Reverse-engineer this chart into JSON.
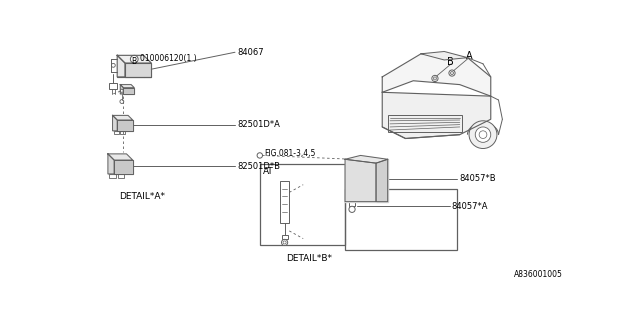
{
  "bg_color": "#ffffff",
  "line_color": "#606060",
  "text_color": "#000000",
  "fig_width": 6.4,
  "fig_height": 3.2,
  "dpi": 100,
  "part_number_bottom_right": "A836001005",
  "labels": {
    "detail_a": "DETAIL*A*",
    "detail_b": "DETAIL*B*",
    "fig_label": "FIG.081-3,4,5",
    "at_label": "AT",
    "part_84067": "84067",
    "part_82501A": "82501D*A",
    "part_82501B": "82501D*B",
    "part_84057A": "84057*A",
    "part_84057B": "84057*B",
    "label_A": "A",
    "label_B": "B"
  },
  "callout_b_text": "B",
  "callout_b_label": "010006120(1 )"
}
